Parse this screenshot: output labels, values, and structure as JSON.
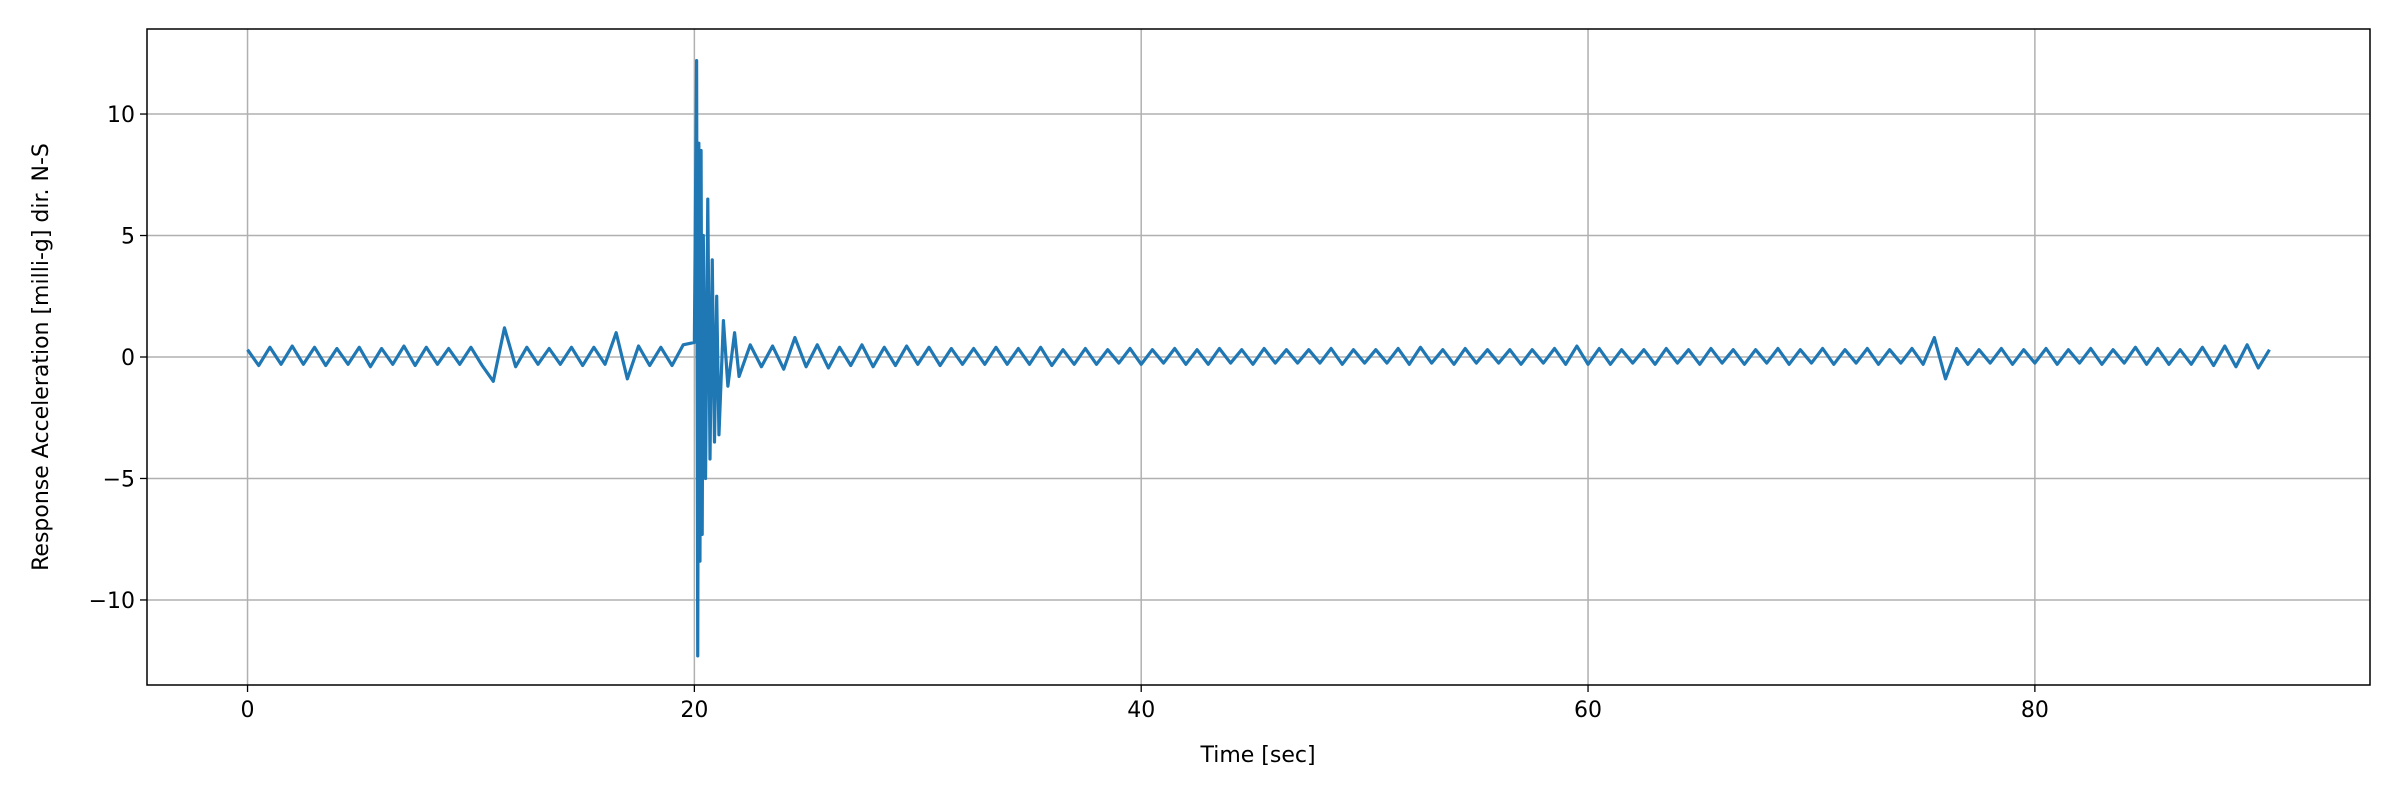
{
  "chart_data": {
    "type": "line",
    "xlabel": "Time [sec]",
    "ylabel": "Response Acceleration [milli-g] dir. N-S",
    "color": "#1f77b4",
    "grid": true,
    "xlim": [
      -4.5,
      95
    ],
    "ylim": [
      -13.5,
      13.5
    ],
    "xticks": [
      0,
      20,
      40,
      60,
      80
    ],
    "yticks": [
      {
        "value": -10,
        "label": "−10"
      },
      {
        "value": -5,
        "label": "−5"
      },
      0,
      5,
      10
    ],
    "x": [
      0,
      0.5,
      1,
      1.5,
      2,
      2.5,
      3,
      3.5,
      4,
      4.5,
      5,
      5.5,
      6,
      6.5,
      7,
      7.5,
      8,
      8.5,
      9,
      9.5,
      10,
      10.5,
      11,
      11.5,
      12,
      12.5,
      13,
      13.5,
      14,
      14.5,
      15,
      15.5,
      16,
      16.5,
      17,
      17.5,
      18,
      18.5,
      19,
      19.5,
      20.0,
      20.1,
      20.15,
      20.2,
      20.25,
      20.3,
      20.35,
      20.4,
      20.5,
      20.6,
      20.7,
      20.8,
      20.9,
      21.0,
      21.1,
      21.3,
      21.5,
      21.8,
      22.0,
      22.5,
      23,
      23.5,
      24,
      24.5,
      25,
      25.5,
      26,
      26.5,
      27,
      27.5,
      28,
      28.5,
      29,
      29.5,
      30,
      30.5,
      31,
      31.5,
      32,
      32.5,
      33,
      33.5,
      34,
      34.5,
      35,
      35.5,
      36,
      36.5,
      37,
      37.5,
      38,
      38.5,
      39,
      39.5,
      40,
      40.5,
      41,
      41.5,
      42,
      42.5,
      43,
      43.5,
      44,
      44.5,
      45,
      45.5,
      46,
      46.5,
      47,
      47.5,
      48,
      48.5,
      49,
      49.5,
      50,
      50.5,
      51,
      51.5,
      52,
      52.5,
      53,
      53.5,
      54,
      54.5,
      55,
      55.5,
      56,
      56.5,
      57,
      57.5,
      58,
      58.5,
      59,
      59.5,
      60,
      60.5,
      61,
      61.5,
      62,
      62.5,
      63,
      63.5,
      64,
      64.5,
      65,
      65.5,
      66,
      66.5,
      67,
      67.5,
      68,
      68.5,
      69,
      69.5,
      70,
      70.5,
      71,
      71.5,
      72,
      72.5,
      73,
      73.5,
      74,
      74.5,
      75,
      75.5,
      76,
      76.5,
      77,
      77.5,
      78,
      78.5,
      79,
      79.5,
      80,
      80.5,
      81,
      81.5,
      82,
      82.5,
      83,
      83.5,
      84,
      84.5,
      85,
      85.5,
      86,
      86.5,
      87,
      87.5,
      88,
      88.5,
      89,
      89.5,
      90,
      90.5
    ],
    "values": [
      0.3,
      -0.35,
      0.4,
      -0.3,
      0.45,
      -0.3,
      0.4,
      -0.35,
      0.35,
      -0.3,
      0.4,
      -0.4,
      0.35,
      -0.3,
      0.45,
      -0.35,
      0.4,
      -0.3,
      0.35,
      -0.3,
      0.4,
      -0.35,
      -1.0,
      1.2,
      -0.4,
      0.4,
      -0.3,
      0.35,
      -0.3,
      0.4,
      -0.35,
      0.4,
      -0.3,
      1.0,
      -0.9,
      0.45,
      -0.35,
      0.4,
      -0.35,
      0.5,
      0.6,
      12.2,
      -12.3,
      8.8,
      -8.4,
      8.5,
      -7.3,
      5.0,
      -5.0,
      6.5,
      -4.2,
      4.0,
      -3.5,
      2.5,
      -3.2,
      1.5,
      -1.2,
      1.0,
      -0.8,
      0.5,
      -0.4,
      0.45,
      -0.5,
      0.8,
      -0.4,
      0.5,
      -0.45,
      0.4,
      -0.35,
      0.5,
      -0.4,
      0.4,
      -0.35,
      0.45,
      -0.3,
      0.4,
      -0.35,
      0.35,
      -0.3,
      0.35,
      -0.3,
      0.4,
      -0.3,
      0.35,
      -0.3,
      0.4,
      -0.35,
      0.3,
      -0.3,
      0.35,
      -0.3,
      0.3,
      -0.25,
      0.35,
      -0.3,
      0.3,
      -0.25,
      0.35,
      -0.3,
      0.3,
      -0.3,
      0.35,
      -0.25,
      0.3,
      -0.3,
      0.35,
      -0.25,
      0.3,
      -0.25,
      0.3,
      -0.25,
      0.35,
      -0.3,
      0.3,
      -0.25,
      0.3,
      -0.25,
      0.35,
      -0.3,
      0.4,
      -0.25,
      0.3,
      -0.3,
      0.35,
      -0.25,
      0.3,
      -0.25,
      0.3,
      -0.3,
      0.3,
      -0.25,
      0.35,
      -0.3,
      0.45,
      -0.3,
      0.35,
      -0.3,
      0.3,
      -0.25,
      0.3,
      -0.3,
      0.35,
      -0.25,
      0.3,
      -0.3,
      0.35,
      -0.25,
      0.3,
      -0.3,
      0.3,
      -0.25,
      0.35,
      -0.3,
      0.3,
      -0.25,
      0.35,
      -0.3,
      0.3,
      -0.25,
      0.35,
      -0.3,
      0.3,
      -0.25,
      0.35,
      -0.3,
      0.8,
      -0.9,
      0.35,
      -0.3,
      0.3,
      -0.25,
      0.35,
      -0.3,
      0.3,
      -0.25,
      0.35,
      -0.3,
      0.3,
      -0.25,
      0.35,
      -0.3,
      0.3,
      -0.25,
      0.4,
      -0.3,
      0.35,
      -0.3,
      0.3,
      -0.3,
      0.4,
      -0.35,
      0.45,
      -0.4,
      0.5,
      -0.45,
      0.3
    ]
  }
}
